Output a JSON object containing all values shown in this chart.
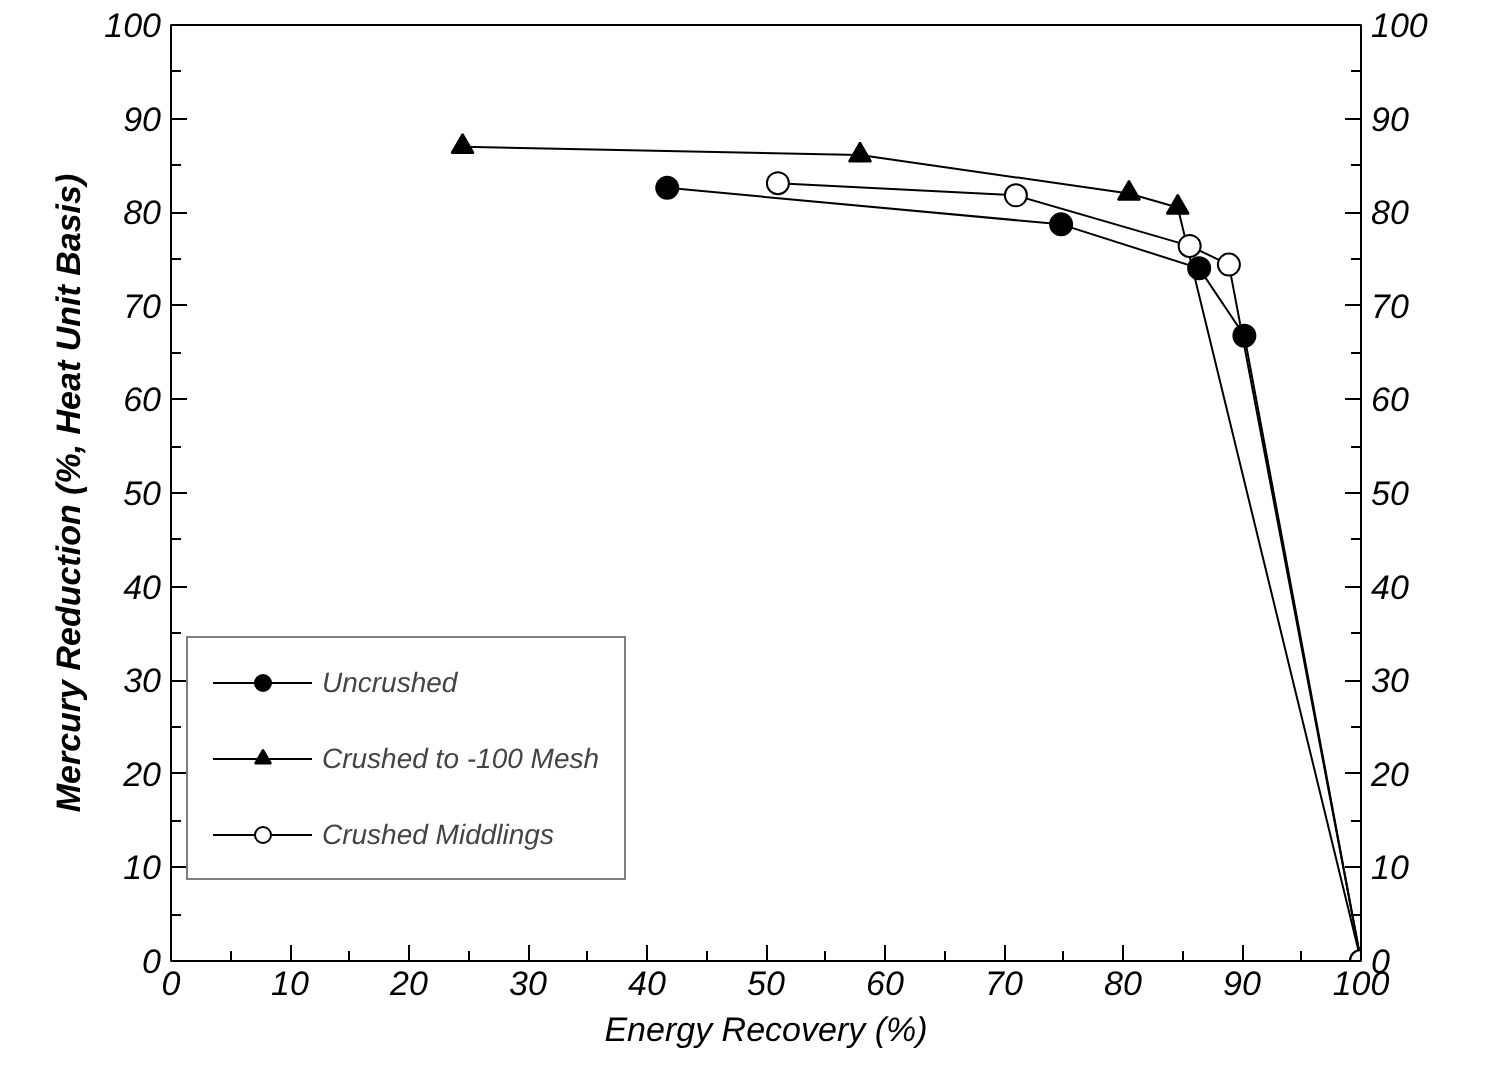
{
  "chart_data": {
    "type": "line",
    "xlabel": "Energy Recovery (%)",
    "ylabel": "Mercury Reduction (%, Heat Unit Basis)",
    "xlim": [
      0,
      100
    ],
    "ylim": [
      0,
      100
    ],
    "y2lim": [
      0,
      100
    ],
    "xticks": [
      0,
      {
        "value": 5,
        "label": null
      },
      10,
      {
        "value": 15,
        "label": null
      },
      20,
      {
        "value": 25,
        "label": null
      },
      30,
      {
        "value": 35,
        "label": null
      },
      40,
      {
        "value": 45,
        "label": null
      },
      50,
      {
        "value": 55,
        "label": null
      },
      60,
      {
        "value": 65,
        "label": null
      },
      70,
      {
        "value": 75,
        "label": null
      },
      80,
      {
        "value": 85,
        "label": null
      },
      90,
      {
        "value": 95,
        "label": null
      },
      100
    ],
    "yticks": [
      0,
      {
        "value": 5,
        "label": null
      },
      10,
      {
        "value": 15,
        "label": null
      },
      20,
      {
        "value": 25,
        "label": null
      },
      30,
      {
        "value": 35,
        "label": null
      },
      40,
      {
        "value": 45,
        "label": null
      },
      50,
      {
        "value": 55,
        "label": null
      },
      60,
      {
        "value": 65,
        "label": null
      },
      70,
      {
        "value": 75,
        "label": null
      },
      80,
      {
        "value": 85,
        "label": null
      },
      90,
      {
        "value": 95,
        "label": null
      },
      100
    ],
    "y2ticks": [
      0,
      {
        "value": 5,
        "label": null
      },
      10,
      {
        "value": 15,
        "label": null
      },
      20,
      {
        "value": 25,
        "label": null
      },
      30,
      {
        "value": 35,
        "label": null
      },
      40,
      {
        "value": 45,
        "label": null
      },
      50,
      {
        "value": 55,
        "label": null
      },
      60,
      {
        "value": 65,
        "label": null
      },
      70,
      {
        "value": 75,
        "label": null
      },
      80,
      {
        "value": 85,
        "label": null
      },
      90,
      {
        "value": 95,
        "label": null
      },
      100
    ],
    "grid": false,
    "legend": "bottom left",
    "line_style": "solid",
    "series": [
      {
        "name": "Uncrushed",
        "color": "#000000",
        "marker": "circle",
        "x": [
          41.7,
          74.8,
          86.4,
          90.2,
          100
        ],
        "values": [
          82.6,
          78.7,
          74.0,
          66.8,
          0
        ]
      },
      {
        "name": "Crushed to -100 Mesh",
        "color": "#000000",
        "marker": "triangle",
        "x": [
          24.5,
          57.9,
          80.5,
          84.6,
          100
        ],
        "values": [
          87.0,
          86.1,
          82.0,
          80.5,
          0
        ]
      },
      {
        "name": "Crushed Middlings",
        "color": "#000000",
        "marker": "open circle",
        "x": [
          51.0,
          71.0,
          85.6,
          88.9,
          100
        ],
        "values": [
          83.1,
          81.8,
          76.4,
          74.4,
          0
        ]
      }
    ]
  }
}
